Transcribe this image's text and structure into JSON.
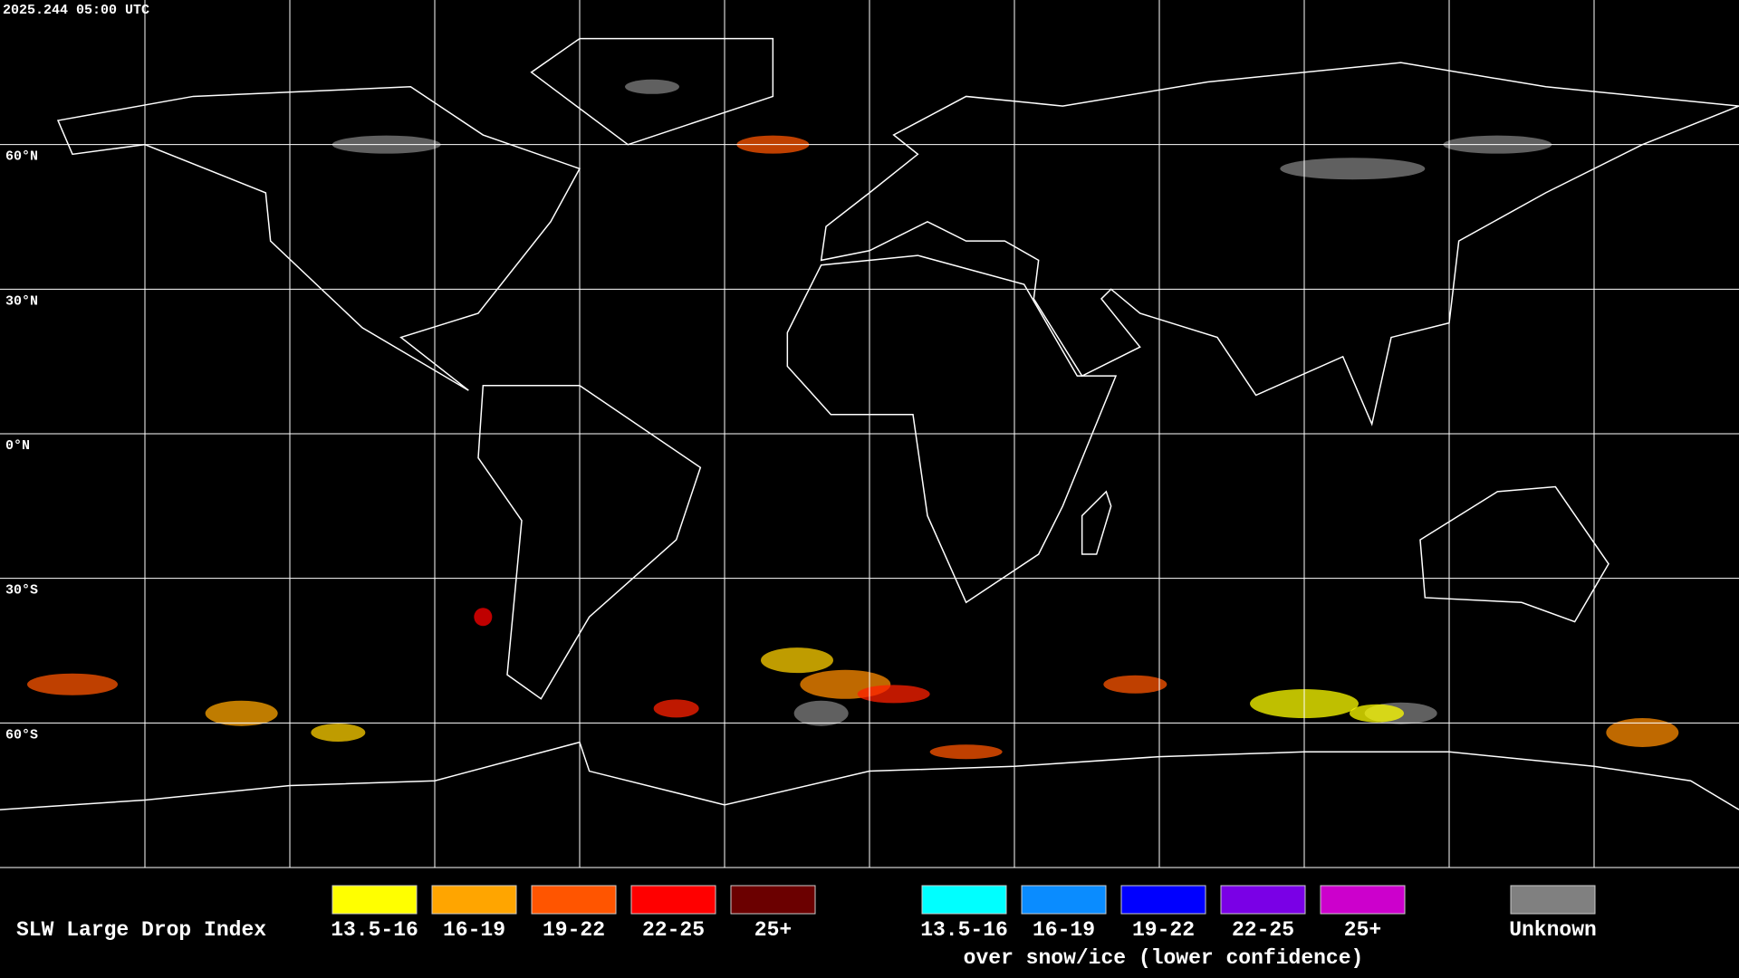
{
  "timestamp": "2025.244 05:00 UTC",
  "latitude_labels": [
    "60°N",
    "30°N",
    "0°N",
    "30°S",
    "60°S"
  ],
  "legend": {
    "title": "SLW Large Drop Index",
    "groups": [
      {
        "items": [
          {
            "label": "13.5-16",
            "color": "#ffff00"
          },
          {
            "label": "16-19",
            "color": "#ffa500"
          },
          {
            "label": "19-22",
            "color": "#ff5500"
          },
          {
            "label": "22-25",
            "color": "#ff0000"
          },
          {
            "label": "25+",
            "color": "#6b0000"
          }
        ]
      },
      {
        "items": [
          {
            "label": "13.5-16",
            "color": "#00ffff"
          },
          {
            "label": "16-19",
            "color": "#0a8cff"
          },
          {
            "label": "19-22",
            "color": "#0000ff"
          },
          {
            "label": "22-25",
            "color": "#7a00e6"
          },
          {
            "label": "25+",
            "color": "#cc00cc"
          }
        ],
        "caption": "over snow/ice (lower confidence)"
      },
      {
        "items": [
          {
            "label": "Unknown",
            "color": "#808080"
          }
        ]
      }
    ]
  }
}
